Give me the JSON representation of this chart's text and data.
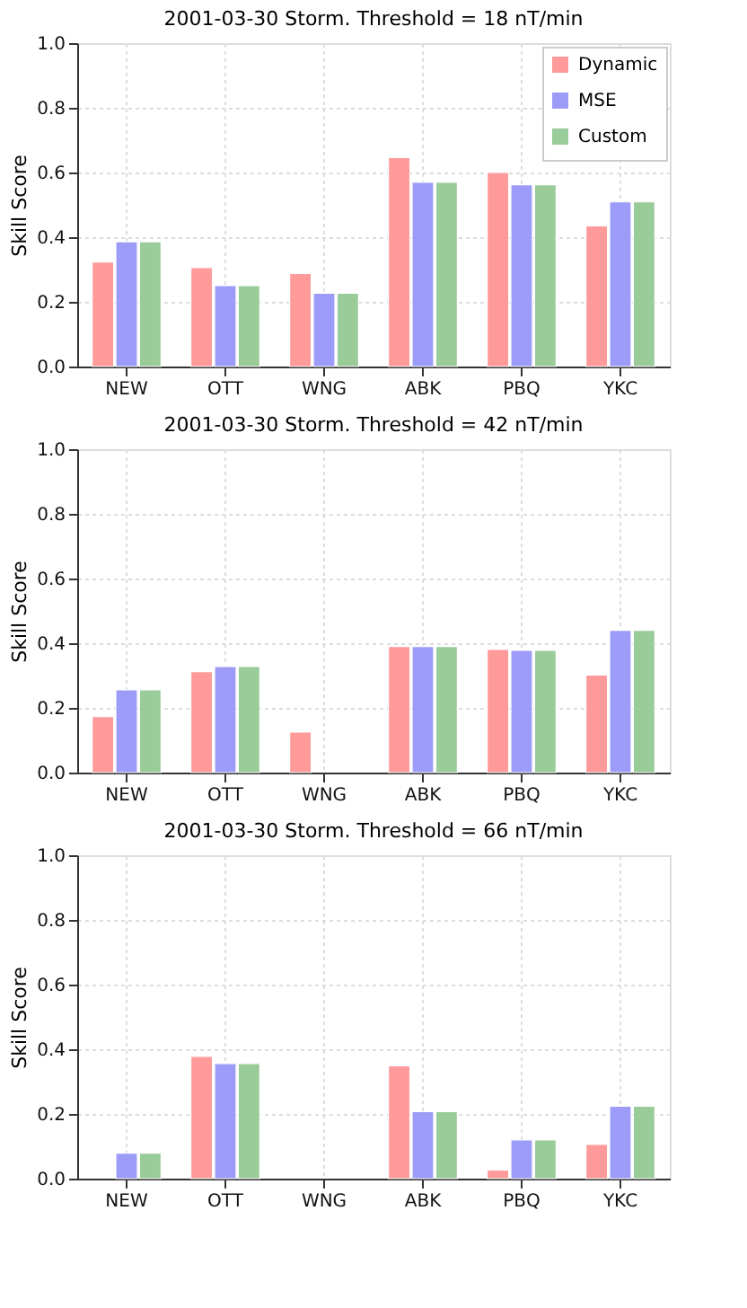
{
  "chart_data": [
    {
      "type": "bar",
      "title": "2001-03-30 Storm. Threshold = 18 nT/min",
      "ylabel": "Skill Score",
      "categories": [
        "NEW",
        "OTT",
        "WNG",
        "ABK",
        "PBQ",
        "YKC"
      ],
      "ylim": [
        0,
        1
      ],
      "yticks": [
        {
          "value": 0,
          "label": "0.0"
        },
        {
          "value": 0.2,
          "label": "0.2"
        },
        {
          "value": 0.4,
          "label": "0.4"
        },
        {
          "value": 0.6,
          "label": "0.6"
        },
        {
          "value": 0.8,
          "label": "0.8"
        },
        {
          "value": 1,
          "label": "1.0"
        }
      ],
      "grid": true,
      "legend": "top right",
      "series": [
        {
          "name": "Dynamic",
          "color": "#fe9a9a",
          "values": [
            0.323,
            0.306,
            0.288,
            0.646,
            0.6,
            0.435
          ]
        },
        {
          "name": "MSE",
          "color": "#9c9cf8",
          "values": [
            0.386,
            0.25,
            0.227,
            0.57,
            0.562,
            0.509
          ]
        },
        {
          "name": "Custom",
          "color": "#9acc9a",
          "values": [
            0.386,
            0.25,
            0.227,
            0.57,
            0.562,
            0.509
          ]
        }
      ]
    },
    {
      "type": "bar",
      "title": "2001-03-30 Storm. Threshold = 42 nT/min",
      "ylabel": "Skill Score",
      "categories": [
        "NEW",
        "OTT",
        "WNG",
        "ABK",
        "PBQ",
        "YKC"
      ],
      "ylim": [
        0,
        1
      ],
      "yticks": [
        {
          "value": 0,
          "label": "0.0"
        },
        {
          "value": 0.2,
          "label": "0.2"
        },
        {
          "value": 0.4,
          "label": "0.4"
        },
        {
          "value": 0.6,
          "label": "0.6"
        },
        {
          "value": 0.8,
          "label": "0.8"
        },
        {
          "value": 1,
          "label": "1.0"
        }
      ],
      "grid": true,
      "legend": "top right",
      "series": [
        {
          "name": "Dynamic",
          "color": "#fe9a9a",
          "values": [
            0.173,
            0.312,
            0.125,
            0.39,
            0.381,
            0.302
          ]
        },
        {
          "name": "MSE",
          "color": "#9c9cf8",
          "values": [
            0.256,
            0.328,
            null,
            0.39,
            0.378,
            0.44
          ]
        },
        {
          "name": "Custom",
          "color": "#9acc9a",
          "values": [
            0.256,
            0.328,
            null,
            0.39,
            0.378,
            0.44
          ]
        }
      ]
    },
    {
      "type": "bar",
      "title": "2001-03-30 Storm. Threshold = 66 nT/min",
      "ylabel": "Skill Score",
      "categories": [
        "NEW",
        "OTT",
        "WNG",
        "ABK",
        "PBQ",
        "YKC"
      ],
      "ylim": [
        0,
        1
      ],
      "yticks": [
        {
          "value": 0,
          "label": "0.0"
        },
        {
          "value": 0.2,
          "label": "0.2"
        },
        {
          "value": 0.4,
          "label": "0.4"
        },
        {
          "value": 0.6,
          "label": "0.6"
        },
        {
          "value": 0.8,
          "label": "0.8"
        },
        {
          "value": 1,
          "label": "1.0"
        }
      ],
      "grid": true,
      "legend": "top right",
      "series": [
        {
          "name": "Dynamic",
          "color": "#fe9a9a",
          "values": [
            null,
            0.378,
            null,
            0.349,
            0.027,
            0.106
          ]
        },
        {
          "name": "MSE",
          "color": "#9c9cf8",
          "values": [
            0.079,
            0.356,
            null,
            0.207,
            0.12,
            0.224
          ]
        },
        {
          "name": "Custom",
          "color": "#9acc9a",
          "values": [
            0.079,
            0.356,
            null,
            0.207,
            0.12,
            0.224
          ]
        }
      ]
    }
  ]
}
